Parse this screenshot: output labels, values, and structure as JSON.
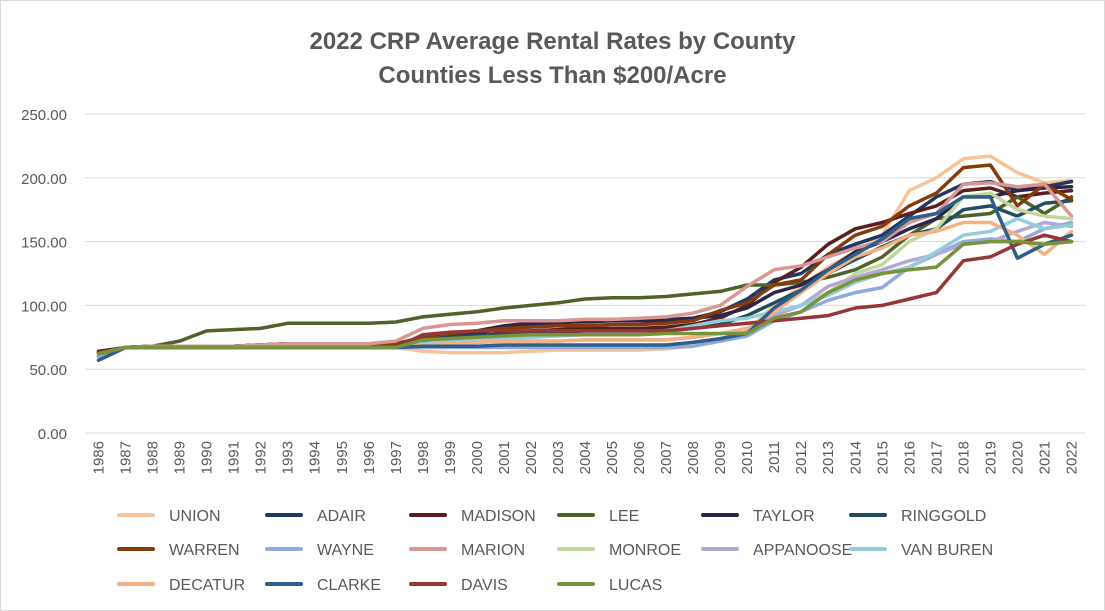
{
  "chart_data": {
    "type": "line",
    "title": "2022 CRP Average Rental Rates by County",
    "subtitle": "Counties Less Than $200/Acre",
    "xlabel": "",
    "ylabel": "",
    "ylim": [
      0,
      250
    ],
    "yticks": [
      "0.00",
      "50.00",
      "100.00",
      "150.00",
      "200.00",
      "250.00"
    ],
    "grid": true,
    "legend_position": "bottom",
    "categories": [
      "1986",
      "1987",
      "1988",
      "1989",
      "1990",
      "1991",
      "1992",
      "1993",
      "1994",
      "1995",
      "1996",
      "1997",
      "1998",
      "1999",
      "2000",
      "2001",
      "2002",
      "2003",
      "2004",
      "2005",
      "2006",
      "2007",
      "2008",
      "2009",
      "2010",
      "2011",
      "2012",
      "2013",
      "2014",
      "2015",
      "2016",
      "2017",
      "2018",
      "2019",
      "2020",
      "2021",
      "2022"
    ],
    "series": [
      {
        "name": "UNION",
        "color": "#f7c49a",
        "values": [
          63,
          67,
          67,
          67,
          67,
          67,
          67,
          67,
          67,
          67,
          67,
          67,
          64,
          63,
          63,
          63,
          64,
          65,
          65,
          65,
          65,
          66,
          68,
          72,
          80,
          100,
          115,
          130,
          142,
          155,
          190,
          200,
          215,
          217,
          204,
          196,
          198
        ]
      },
      {
        "name": "ADAIR",
        "color": "#203864",
        "values": [
          63,
          67,
          68,
          68,
          68,
          68,
          69,
          70,
          70,
          70,
          70,
          70,
          72,
          74,
          78,
          82,
          85,
          86,
          88,
          89,
          89,
          89,
          90,
          95,
          105,
          120,
          125,
          140,
          148,
          155,
          170,
          185,
          195,
          197,
          190,
          193,
          197
        ]
      },
      {
        "name": "MADISON",
        "color": "#5b1e1e",
        "values": [
          64,
          67,
          68,
          68,
          68,
          68,
          69,
          70,
          70,
          70,
          70,
          70,
          72,
          74,
          76,
          78,
          80,
          81,
          82,
          82,
          82,
          83,
          85,
          90,
          100,
          118,
          130,
          148,
          160,
          165,
          172,
          178,
          190,
          192,
          185,
          188,
          190
        ]
      },
      {
        "name": "LEE",
        "color": "#4f6228",
        "values": [
          60,
          67,
          68,
          72,
          80,
          81,
          82,
          86,
          86,
          86,
          86,
          87,
          91,
          93,
          95,
          98,
          100,
          102,
          105,
          106,
          106,
          107,
          109,
          111,
          116,
          116,
          118,
          122,
          128,
          138,
          155,
          168,
          170,
          172,
          185,
          172,
          185
        ]
      },
      {
        "name": "TAYLOR",
        "color": "#2e2348",
        "values": [
          62,
          67,
          68,
          68,
          68,
          68,
          69,
          70,
          70,
          70,
          70,
          70,
          73,
          76,
          80,
          84,
          86,
          87,
          87,
          88,
          88,
          88,
          90,
          92,
          98,
          110,
          116,
          128,
          142,
          150,
          160,
          168,
          185,
          185,
          190,
          192,
          193
        ]
      },
      {
        "name": "RINGGOLD",
        "color": "#1f4e5f",
        "values": [
          62,
          67,
          68,
          68,
          68,
          68,
          69,
          70,
          70,
          70,
          70,
          70,
          74,
          75,
          76,
          77,
          78,
          79,
          80,
          80,
          80,
          80,
          82,
          85,
          92,
          102,
          112,
          125,
          136,
          146,
          155,
          160,
          175,
          178,
          170,
          180,
          182
        ]
      },
      {
        "name": "WARREN",
        "color": "#843c0c",
        "values": [
          63,
          67,
          68,
          68,
          68,
          68,
          69,
          70,
          70,
          70,
          70,
          70,
          75,
          78,
          80,
          82,
          83,
          84,
          84,
          85,
          85,
          86,
          88,
          96,
          102,
          116,
          120,
          140,
          155,
          162,
          178,
          188,
          208,
          210,
          178,
          195,
          183
        ]
      },
      {
        "name": "WAYNE",
        "color": "#8faadc",
        "values": [
          60,
          67,
          67,
          67,
          67,
          67,
          67,
          67,
          67,
          67,
          67,
          67,
          67,
          67,
          67,
          67,
          67,
          67,
          67,
          67,
          67,
          67,
          68,
          72,
          76,
          88,
          95,
          104,
          110,
          114,
          130,
          140,
          150,
          152,
          150,
          160,
          165
        ]
      },
      {
        "name": "MARION",
        "color": "#d99694",
        "values": [
          62,
          67,
          68,
          68,
          68,
          68,
          69,
          70,
          70,
          70,
          70,
          72,
          82,
          85,
          86,
          88,
          88,
          88,
          89,
          89,
          90,
          91,
          94,
          100,
          115,
          128,
          131,
          138,
          145,
          150,
          165,
          172,
          195,
          196,
          193,
          195,
          170
        ]
      },
      {
        "name": "MONROE",
        "color": "#c3d69b",
        "values": [
          62,
          67,
          67,
          67,
          67,
          67,
          67,
          67,
          67,
          67,
          67,
          67,
          69,
          70,
          71,
          72,
          72,
          72,
          73,
          73,
          73,
          73,
          75,
          78,
          80,
          92,
          100,
          110,
          125,
          132,
          150,
          160,
          185,
          188,
          175,
          170,
          168
        ]
      },
      {
        "name": "APPANOOSE",
        "color": "#b4a7d6",
        "values": [
          62,
          67,
          67,
          67,
          67,
          67,
          67,
          67,
          67,
          67,
          67,
          67,
          69,
          70,
          71,
          72,
          72,
          72,
          73,
          73,
          73,
          73,
          75,
          78,
          80,
          92,
          100,
          115,
          122,
          128,
          135,
          140,
          148,
          150,
          158,
          165,
          162
        ]
      },
      {
        "name": "VAN BUREN",
        "color": "#93cddd",
        "values": [
          62,
          67,
          67,
          67,
          67,
          67,
          67,
          67,
          67,
          67,
          67,
          67,
          70,
          72,
          73,
          74,
          75,
          76,
          77,
          78,
          79,
          80,
          84,
          88,
          90,
          95,
          100,
          108,
          118,
          125,
          130,
          142,
          155,
          158,
          168,
          160,
          163
        ]
      },
      {
        "name": "DECATUR",
        "color": "#f4b183",
        "values": [
          62,
          67,
          67,
          67,
          67,
          67,
          67,
          67,
          67,
          67,
          67,
          67,
          69,
          70,
          71,
          72,
          72,
          72,
          73,
          73,
          73,
          73,
          75,
          78,
          82,
          95,
          110,
          125,
          138,
          145,
          155,
          158,
          165,
          165,
          155,
          140,
          158
        ]
      },
      {
        "name": "CLARKE",
        "color": "#2e5f8a",
        "values": [
          57,
          67,
          67,
          67,
          67,
          67,
          67,
          67,
          67,
          67,
          67,
          67,
          68,
          68,
          68,
          69,
          69,
          69,
          69,
          69,
          69,
          69,
          71,
          74,
          78,
          98,
          112,
          128,
          140,
          152,
          168,
          172,
          185,
          185,
          137,
          148,
          155
        ]
      },
      {
        "name": "DAVIS",
        "color": "#953735",
        "values": [
          62,
          67,
          67,
          67,
          67,
          67,
          67,
          67,
          67,
          67,
          67,
          67,
          77,
          79,
          80,
          80,
          80,
          80,
          80,
          80,
          80,
          80,
          82,
          84,
          86,
          88,
          90,
          92,
          98,
          100,
          105,
          110,
          135,
          138,
          148,
          155,
          150
        ]
      },
      {
        "name": "LUCAS",
        "color": "#77933c",
        "values": [
          62,
          67,
          67,
          67,
          67,
          67,
          67,
          67,
          67,
          67,
          67,
          67,
          73,
          74,
          75,
          76,
          77,
          77,
          77,
          77,
          77,
          78,
          78,
          78,
          78,
          90,
          95,
          110,
          120,
          125,
          128,
          130,
          148,
          150,
          150,
          148,
          150
        ]
      }
    ]
  }
}
